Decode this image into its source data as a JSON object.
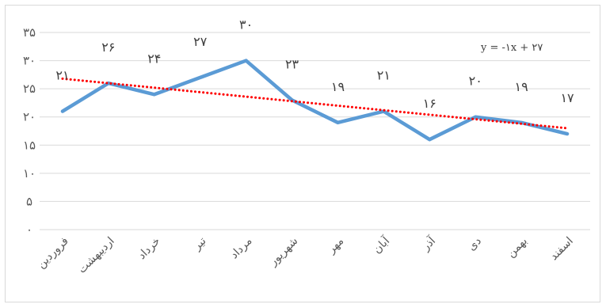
{
  "chart_data": {
    "type": "line",
    "title": "",
    "xlabel": "",
    "ylabel": "",
    "categories": [
      "فروردین",
      "اردیبهشت",
      "خرداد",
      "تیر",
      "مرداد",
      "شهریور",
      "مهر",
      "آبان",
      "آذر",
      "دی",
      "بهمن",
      "اسفند"
    ],
    "series": [
      {
        "color": "#5b9bd5",
        "values": [
          21,
          26,
          24,
          27,
          30,
          23,
          19,
          21,
          16,
          20,
          19,
          17
        ],
        "labels": [
          "۲۱",
          "۲۶",
          "۲۴",
          "۲۷",
          "۳۰",
          "۲۳",
          "۱۹",
          "۲۱",
          "۱۶",
          "۲۰",
          "۱۹",
          "۱۷"
        ]
      }
    ],
    "trendline": {
      "color": "#ff0000",
      "style": "dotted",
      "slope": -0.8,
      "intercept": 26.8,
      "equation": "y = -۱x + ۲۷"
    },
    "ylim": [
      0,
      35
    ],
    "yticks": [
      0,
      5,
      10,
      15,
      20,
      25,
      30,
      35
    ],
    "ytick_labels": [
      "۰",
      "۵",
      "۱۰",
      "۱۵",
      "۲۰",
      "۲۵",
      "۳۰",
      "۳۵"
    ],
    "grid": true,
    "legend": "none"
  }
}
